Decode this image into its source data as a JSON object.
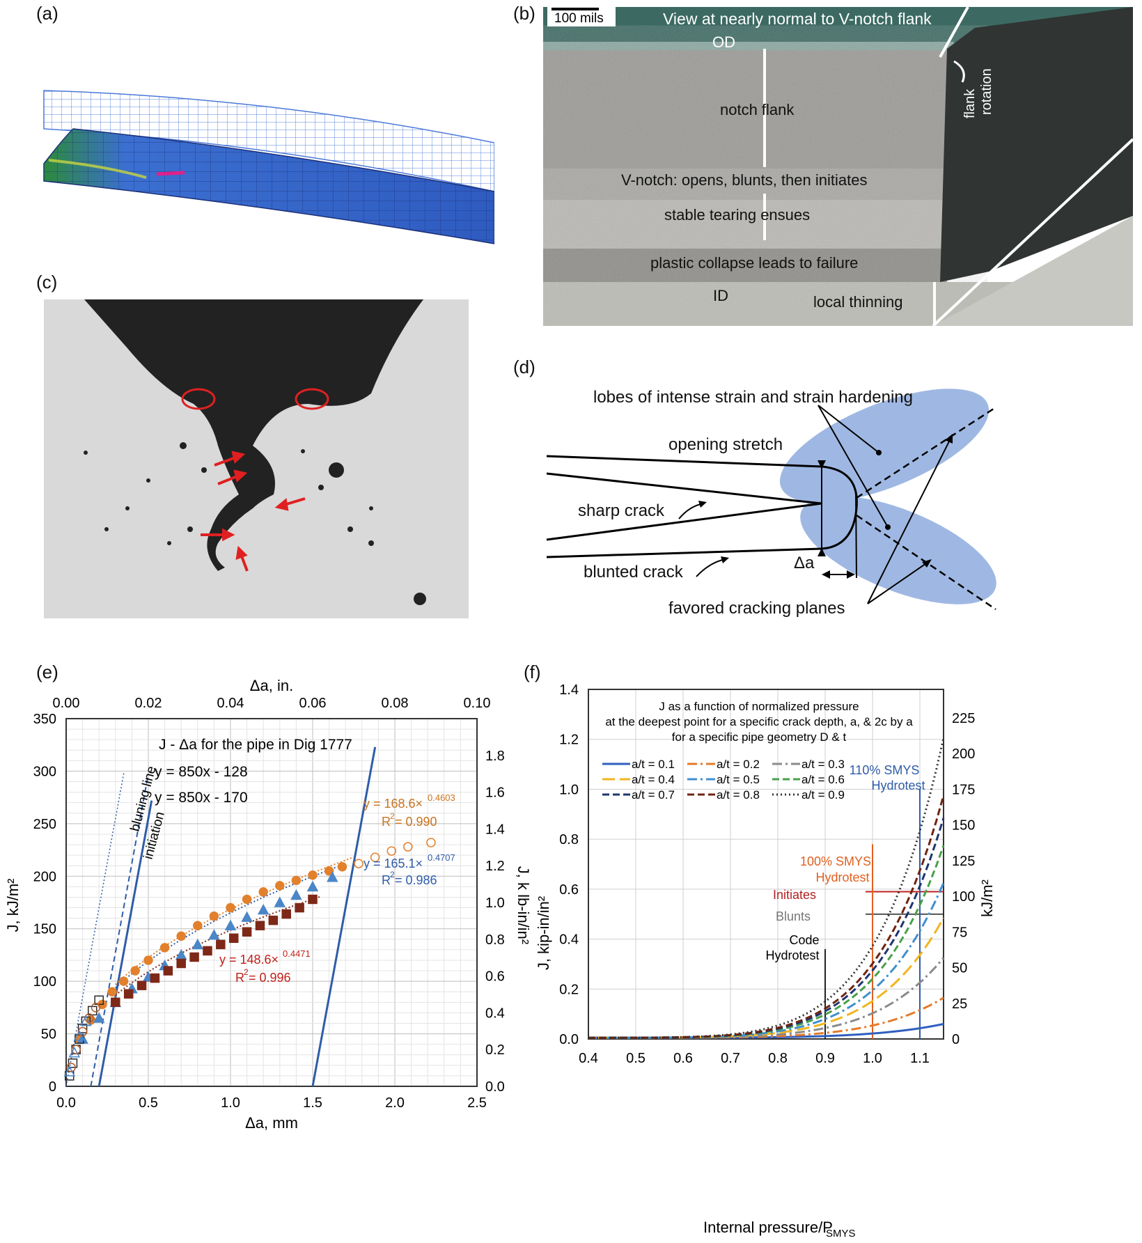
{
  "panel_labels": {
    "a": "(a)",
    "b": "(b)",
    "c": "(c)",
    "d": "(d)",
    "e": "(e)",
    "f": "(f)"
  },
  "colors": {
    "mesh_blue": "#3d5fc4",
    "lobe_blue": "#9fb8e3",
    "red": "#e02020",
    "orange": "#e2802c",
    "dark_red": "#7e2818",
    "chart_blue": "#2e5ca8"
  },
  "photo_b": {
    "scale_bar": "100 mils",
    "title": "View at nearly normal to V-notch flank",
    "od": "OD",
    "notch_flank": "notch  flank",
    "v_notch": "V-notch: opens, blunts, then initiates",
    "stable_tearing": "stable tearing  ensues",
    "plastic_collapse": "plastic collapse leads to failure",
    "id": "ID",
    "local_thinning": "local thinning",
    "flank_rotation_1": "flank",
    "flank_rotation_2": "rotation"
  },
  "diagram_d": {
    "lobes": "lobes of intense strain and strain hardening",
    "opening_stretch": "opening stretch",
    "sharp_crack": "sharp crack",
    "blunted_crack": "blunted crack",
    "delta_a": "Δa",
    "favored_planes": "favored cracking planes"
  },
  "chart_data": [
    {
      "id": "e",
      "type": "scatter",
      "title": "J - Δa for the pipe in Dig 1777",
      "xlabel": "Δa, mm",
      "x2label": "Δa, in.",
      "ylabel": "J, kJ/m²",
      "y2label": "J, k lb-in/in²",
      "xlim": [
        0,
        2.5
      ],
      "ylim": [
        0,
        350
      ],
      "x2lim": [
        0,
        0.1
      ],
      "y2lim": [
        0,
        2.0
      ],
      "xticks": [
        "0.0",
        "0.5",
        "1.0",
        "1.5",
        "2.0",
        "2.5"
      ],
      "yticks": [
        "0",
        "50",
        "100",
        "150",
        "200",
        "250",
        "300",
        "350"
      ],
      "x2ticks": [
        "0.00",
        "0.02",
        "0.04",
        "0.06",
        "0.08",
        "0.10"
      ],
      "y2ticks": [
        "0.0",
        "0.2",
        "0.4",
        "0.6",
        "0.8",
        "1.0",
        "1.2",
        "1.4",
        "1.6",
        "1.8"
      ],
      "grid": true,
      "annotations": {
        "eq1": "y = 850x - 128",
        "eq2": "y = 850x - 170",
        "blunting": "bluning line",
        "initiation": "initiation",
        "fit_orange": "y = 168.6×",
        "fit_orange_exp": "0.4603",
        "r2_orange": "R",
        "r2_orange_val": " = 0.990",
        "fit_blue": "y = 165.1×",
        "fit_blue_exp": "0.4707",
        "r2_blue": "R",
        "r2_blue_val": " = 0.986",
        "fit_red": "y = 148.6×",
        "fit_red_exp": "0.4471",
        "r2_red": "R",
        "r2_red_val": " = 0.996",
        "sup2": "2"
      },
      "series": [
        {
          "marker": "circle",
          "color": "#e2802c",
          "x": [
            0.08,
            0.15,
            0.22,
            0.28,
            0.35,
            0.42,
            0.5,
            0.6,
            0.7,
            0.8,
            0.9,
            1.0,
            1.1,
            1.2,
            1.3,
            1.4,
            1.5,
            1.6,
            1.68
          ],
          "y": [
            45,
            63,
            78,
            90,
            100,
            110,
            120,
            132,
            143,
            153,
            162,
            170,
            178,
            185,
            191,
            196,
            201,
            205,
            209
          ]
        },
        {
          "marker": "triangle",
          "color": "#4a86c8",
          "x": [
            0.1,
            0.2,
            0.3,
            0.4,
            0.5,
            0.6,
            0.7,
            0.8,
            0.9,
            1.0,
            1.1,
            1.2,
            1.3,
            1.4,
            1.5,
            1.62
          ],
          "y": [
            45,
            65,
            80,
            93,
            104,
            115,
            125,
            135,
            144,
            153,
            161,
            168,
            175,
            182,
            190,
            199
          ]
        },
        {
          "marker": "square",
          "color": "#7e2818",
          "x": [
            0.3,
            0.38,
            0.46,
            0.54,
            0.62,
            0.7,
            0.78,
            0.86,
            0.94,
            1.02,
            1.1,
            1.18,
            1.26,
            1.34,
            1.42,
            1.5
          ],
          "y": [
            80,
            88,
            96,
            103,
            110,
            117,
            123,
            129,
            135,
            141,
            147,
            153,
            158,
            164,
            170,
            178
          ]
        },
        {
          "marker": "open-circle",
          "color": "#e2802c",
          "x": [
            1.78,
            1.88,
            1.98,
            2.08,
            2.22
          ],
          "y": [
            212,
            218,
            224,
            228,
            232
          ]
        },
        {
          "marker": "open-square",
          "color": "#2a2a2a",
          "x": [
            0.02,
            0.04,
            0.06,
            0.08,
            0.1,
            0.12,
            0.16,
            0.2
          ],
          "y": [
            10,
            22,
            35,
            45,
            55,
            62,
            72,
            82
          ]
        },
        {
          "marker": "open-circle",
          "color": "#b05a2a",
          "x": [
            0.03,
            0.06,
            0.1,
            0.14,
            0.18
          ],
          "y": [
            18,
            35,
            52,
            65,
            75
          ]
        },
        {
          "marker": "open-triangle",
          "color": "#4a86c8",
          "x": [
            0.02,
            0.05,
            0.08,
            0.12
          ],
          "y": [
            14,
            32,
            48,
            62
          ]
        }
      ]
    },
    {
      "id": "f",
      "type": "line",
      "title_lines": [
        "J as a function of normalized pressure",
        "at the deepest point for a specific crack depth, a, & 2c by a",
        "for a specific pipe geometry D & t"
      ],
      "xlabel": "Internal pressure/P",
      "xlabel_sub": "SMYS",
      "ylabel": "J, kip-in/in²",
      "y2label": "kJ/m²",
      "xlim": [
        0.4,
        1.15
      ],
      "ylim": [
        0,
        1.4
      ],
      "y2lim": [
        0,
        245
      ],
      "xticks": [
        "0.4",
        "0.5",
        "0.6",
        "0.7",
        "0.8",
        "0.9",
        "1.0",
        "1.1"
      ],
      "yticks": [
        "0.0",
        "0.2",
        "0.4",
        "0.6",
        "0.8",
        "1.0",
        "1.2",
        "1.4"
      ],
      "y2ticks": [
        "0",
        "25",
        "50",
        "75",
        "100",
        "125",
        "150",
        "175",
        "200",
        "225"
      ],
      "grid": true,
      "legend_placement": "top",
      "annotations": {
        "hydro110_1": "110% SMYS",
        "hydro110_2": "Hydrotest",
        "hydro100_1": "100% SMYS",
        "hydro100_2": "Hydrotest",
        "initiates": "Initiates",
        "blunts": "Blunts",
        "code_1": "Code",
        "code_2": "Hydrotest"
      },
      "reference_lines": {
        "initiates": 0.59,
        "blunts": 0.5,
        "code_x": 0.9,
        "hydro100_x": 1.0,
        "hydro110_x": 1.1
      },
      "series": [
        {
          "name": "a/t = 0.1",
          "color": "#2f5fbf",
          "dash": "solid",
          "J115": 0.055
        },
        {
          "name": "a/t = 0.2",
          "color": "#e57a2a",
          "dash": "dashdot",
          "J115": 0.16
        },
        {
          "name": "a/t = 0.3",
          "color": "#8a8a8a",
          "dash": "dashdot",
          "J115": 0.32
        },
        {
          "name": "a/t = 0.4",
          "color": "#f2b51e",
          "dash": "longdash",
          "J115": 0.48
        },
        {
          "name": "a/t = 0.5",
          "color": "#3f8fd0",
          "dash": "dashdot",
          "J115": 0.62
        },
        {
          "name": "a/t = 0.6",
          "color": "#49a04a",
          "dash": "dash",
          "J115": 0.77
        },
        {
          "name": "a/t = 0.7",
          "color": "#1e3570",
          "dash": "dash",
          "J115": 0.88
        },
        {
          "name": "a/t = 0.8",
          "color": "#6e2410",
          "dash": "dash",
          "J115": 0.97
        },
        {
          "name": "a/t = 0.9",
          "color": "#333333",
          "dash": "dot",
          "J115": 1.2
        }
      ]
    }
  ]
}
